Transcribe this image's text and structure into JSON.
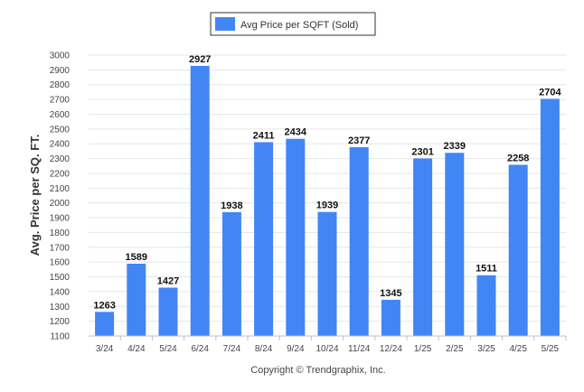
{
  "chart_data": {
    "type": "bar",
    "title": "",
    "xlabel": "",
    "ylabel": "Avg. Price per SQ. FT.",
    "ylim": [
      1100,
      3000
    ],
    "yticks": [
      1100,
      1200,
      1300,
      1400,
      1500,
      1600,
      1700,
      1800,
      1900,
      2000,
      2100,
      2200,
      2300,
      2400,
      2500,
      2600,
      2700,
      2800,
      2900,
      3000
    ],
    "categories": [
      "3/24",
      "4/24",
      "5/24",
      "6/24",
      "7/24",
      "8/24",
      "9/24",
      "10/24",
      "11/24",
      "12/24",
      "1/25",
      "2/25",
      "3/25",
      "4/25",
      "5/25"
    ],
    "series": [
      {
        "name": "Avg Price per SQFT (Sold)",
        "color": "#4286f4",
        "values": [
          1263,
          1589,
          1427,
          2927,
          1938,
          2411,
          2434,
          1939,
          2377,
          1345,
          2301,
          2339,
          1511,
          2258,
          2704
        ]
      }
    ],
    "grid": true,
    "legend_position": "top-center"
  },
  "footer": {
    "copyright": "Copyright © Trendgraphix, Inc."
  }
}
